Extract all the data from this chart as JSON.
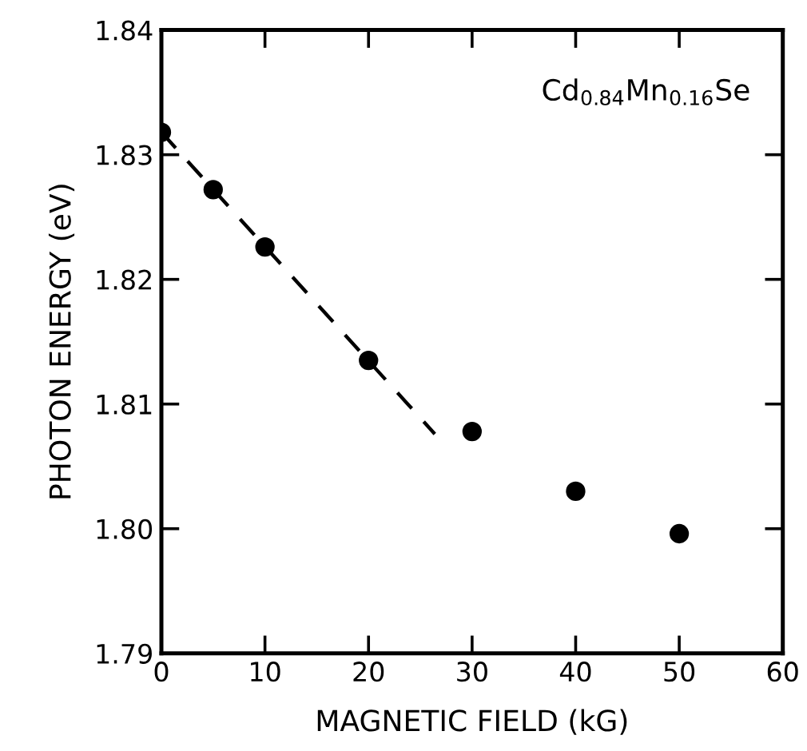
{
  "chart_data": {
    "type": "scatter",
    "xlabel": "MAGNETIC FIELD (kG)",
    "ylabel": "PHOTON ENERGY (eV)",
    "annotations": [
      "Cd$_{0.84}$Mn$_{0.16}$Se"
    ],
    "xlim": [
      0,
      60
    ],
    "xticks": [
      0,
      10,
      20,
      30,
      40,
      50,
      60
    ],
    "ylim": [
      1.79,
      1.84
    ],
    "yticks": [
      1.79,
      {
        "value": 1.8,
        "label": "1.80"
      },
      1.81,
      1.82,
      1.83,
      1.84
    ],
    "grid": false,
    "legend": false,
    "series": [
      {
        "color": "#000000",
        "marker": "circle",
        "x": [
          0,
          5,
          10,
          20,
          30,
          40,
          50
        ],
        "values": [
          1.8318,
          1.8272,
          1.8226,
          1.8135,
          1.8078,
          1.803,
          1.7996
        ]
      },
      {
        "type": "line",
        "color": "#000000",
        "marker": "none",
        "line_style": "dashed",
        "x": [
          0,
          26.4
        ],
        "values": [
          1.8318,
          1.8076
        ]
      }
    ]
  }
}
